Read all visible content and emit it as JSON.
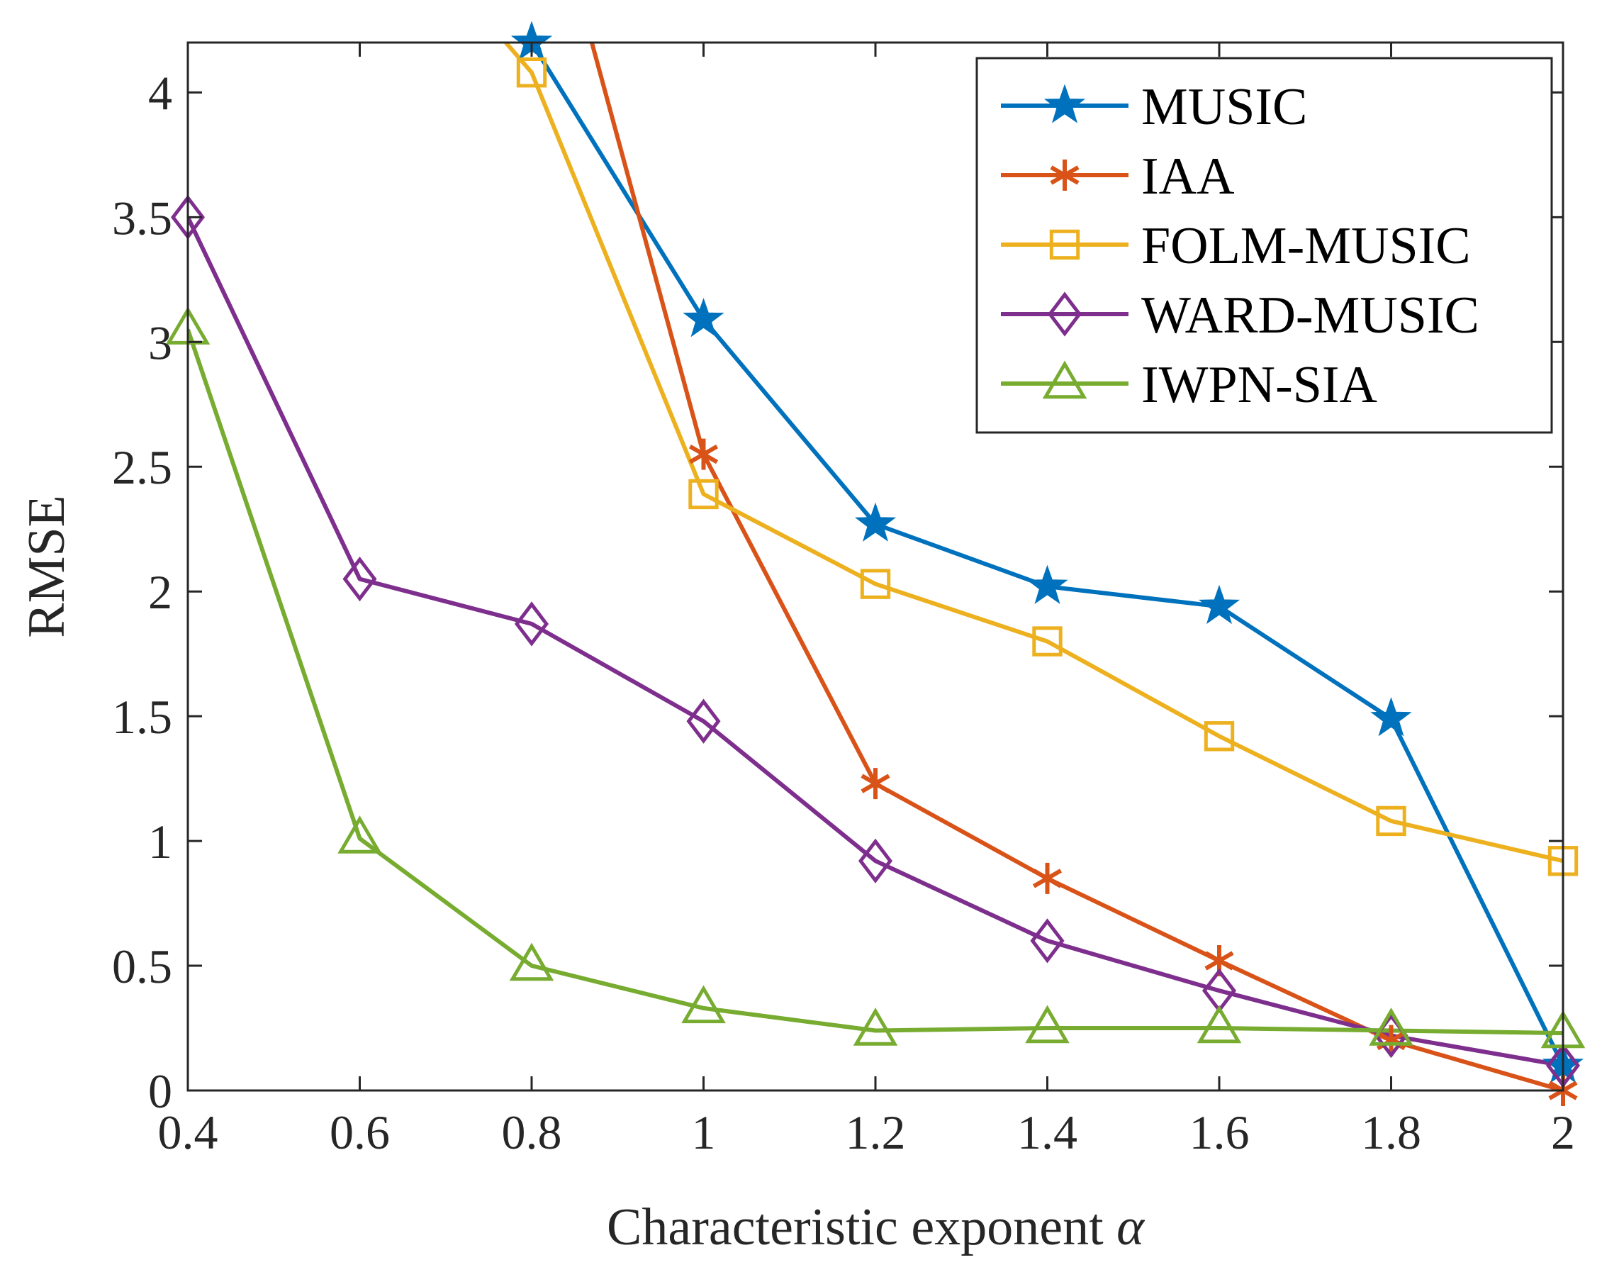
{
  "chart_data": {
    "type": "line",
    "xlabel": "Characteristic exponent",
    "xlabel_symbol": "α",
    "ylabel": "RMSE",
    "xlim": [
      0.4,
      2
    ],
    "ylim": [
      0,
      4.2
    ],
    "xticks": [
      0.4,
      0.6,
      0.8,
      1,
      1.2,
      1.4,
      1.6,
      1.8,
      2
    ],
    "xtick_labels": [
      "0.4",
      "0.6",
      "0.8",
      "1",
      "1.2",
      "1.4",
      "1.6",
      "1.8",
      "2"
    ],
    "yticks": [
      0,
      0.5,
      1,
      1.5,
      2,
      2.5,
      3,
      3.5,
      4
    ],
    "ytick_labels": [
      "0",
      "0.5",
      "1",
      "1.5",
      "2",
      "2.5",
      "3",
      "3.5",
      "4"
    ],
    "grid": false,
    "legend_position": "top-right",
    "series": [
      {
        "name": "MUSIC",
        "color": "#0072BD",
        "marker": "star",
        "x": [
          0.8,
          1,
          1.2,
          1.4,
          1.6,
          1.8,
          2
        ],
        "y": [
          4.2,
          3.09,
          2.27,
          2.02,
          1.94,
          1.49,
          0.1
        ]
      },
      {
        "name": "IAA",
        "color": "#D95319",
        "marker": "asterisk",
        "x": [
          0.87,
          1,
          1.2,
          1.4,
          1.6,
          1.8,
          2
        ],
        "y": [
          4.2,
          2.55,
          1.23,
          0.85,
          0.52,
          0.2,
          0.0
        ]
      },
      {
        "name": "FOLM-MUSIC",
        "color": "#EDB120",
        "marker": "square",
        "x": [
          0.77,
          0.8,
          1,
          1.2,
          1.4,
          1.6,
          1.8,
          2
        ],
        "y": [
          4.2,
          4.08,
          2.39,
          2.03,
          1.8,
          1.42,
          1.08,
          0.92
        ]
      },
      {
        "name": "WARD-MUSIC",
        "color": "#7E2F8E",
        "marker": "diamond",
        "x": [
          0.4,
          0.6,
          0.8,
          1,
          1.2,
          1.4,
          1.6,
          1.8,
          2
        ],
        "y": [
          3.5,
          2.05,
          1.87,
          1.48,
          0.92,
          0.6,
          0.4,
          0.22,
          0.1
        ]
      },
      {
        "name": "IWPN-SIA",
        "color": "#77AC30",
        "marker": "triangle",
        "x": [
          0.4,
          0.6,
          0.8,
          1,
          1.2,
          1.4,
          1.6,
          1.8,
          2
        ],
        "y": [
          3.05,
          1.01,
          0.5,
          0.33,
          0.24,
          0.25,
          0.25,
          0.24,
          0.23
        ]
      }
    ]
  }
}
